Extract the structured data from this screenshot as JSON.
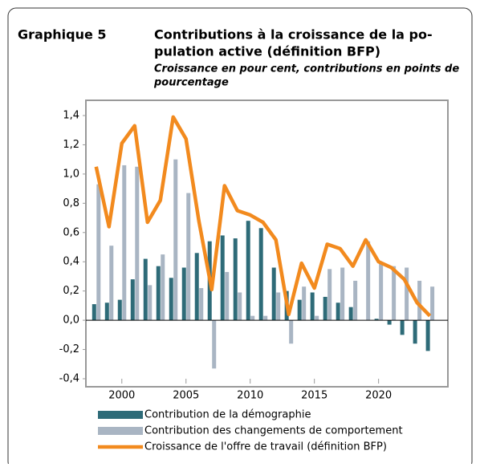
{
  "chart_data": {
    "type": "bar_line",
    "label": "Graphique 5",
    "title_lines": [
      "Contributions à la croissance de la po-",
      "pulation active (définition BFP)"
    ],
    "subtitle_lines": [
      "Croissance en pour cent, contributions en points de",
      "pourcentage"
    ],
    "x": [
      1998,
      1999,
      2000,
      2001,
      2002,
      2003,
      2004,
      2005,
      2006,
      2007,
      2008,
      2009,
      2010,
      2011,
      2012,
      2013,
      2014,
      2015,
      2016,
      2017,
      2018,
      2019,
      2020,
      2021,
      2022,
      2023,
      2024
    ],
    "series": [
      {
        "name": "Contribution de la démographie",
        "type": "bar",
        "color": "#2e6b78",
        "values": [
          0.11,
          0.12,
          0.14,
          0.28,
          0.42,
          0.37,
          0.29,
          0.36,
          0.46,
          0.54,
          0.58,
          0.56,
          0.68,
          0.63,
          0.36,
          0.2,
          0.14,
          0.19,
          0.16,
          0.12,
          0.09,
          0.0,
          0.01,
          -0.03,
          -0.1,
          -0.16,
          -0.21
        ]
      },
      {
        "name": "Contribution des changements de comportement",
        "type": "bar",
        "color": "#a9b5c3",
        "values": [
          0.93,
          0.51,
          1.06,
          1.05,
          0.24,
          0.45,
          1.1,
          0.87,
          0.22,
          -0.33,
          0.33,
          0.19,
          0.03,
          0.03,
          0.19,
          -0.16,
          0.23,
          0.03,
          0.35,
          0.36,
          0.27,
          0.54,
          0.39,
          0.37,
          0.36,
          0.27,
          0.23
        ]
      },
      {
        "name": "Croissance de l'offre de travail (définition BFP)",
        "type": "line",
        "color": "#f28a1e",
        "values": [
          1.05,
          0.64,
          1.21,
          1.33,
          0.67,
          0.82,
          1.39,
          1.24,
          0.68,
          0.21,
          0.92,
          0.75,
          0.72,
          0.67,
          0.55,
          0.04,
          0.39,
          0.22,
          0.52,
          0.49,
          0.37,
          0.55,
          0.4,
          0.36,
          0.28,
          0.12,
          0.03
        ]
      }
    ],
    "xlim": [
      1997.2,
      2025.4
    ],
    "xticks": [
      2000,
      2005,
      2010,
      2015,
      2020
    ],
    "ylim": [
      -0.4,
      1.4
    ],
    "yticks": [
      {
        "value": -0.4,
        "label": "-0,4"
      },
      {
        "value": -0.2,
        "label": "-0,2"
      },
      {
        "value": 0,
        "label": "0,0"
      },
      {
        "value": 0.2,
        "label": "0,2"
      },
      {
        "value": 0.4,
        "label": "0,4"
      },
      {
        "value": 0.6,
        "label": "0,6"
      },
      {
        "value": 0.8,
        "label": "0,8"
      },
      {
        "value": 1.0,
        "label": "1,0"
      },
      {
        "value": 1.2,
        "label": "1,2"
      },
      {
        "value": 1.4,
        "label": "1,4"
      }
    ]
  }
}
